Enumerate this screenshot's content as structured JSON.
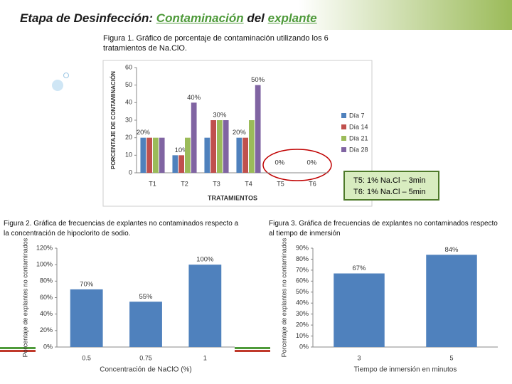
{
  "slide": {
    "title_parts": [
      "Etapa de Desinfección:",
      "Contaminación",
      "del",
      "explante"
    ],
    "annotation": [
      "T5: 1% Na.Cl – 3min",
      "T6: 1% Na.Cl – 5min"
    ]
  },
  "chart_data": [
    {
      "type": "bar",
      "caption": "Figura 1. Gráfico de porcentaje de contaminación utilizando los 6 tratamientos de Na.ClO.",
      "ylabel": "PORCENTAJE DE CONTAMINACIÓN",
      "xlabel": "TRATAMIENTOS",
      "categories": [
        "T1",
        "T2",
        "T3",
        "T4",
        "T5",
        "T6"
      ],
      "series": [
        {
          "name": "Día 7",
          "color": "#4f81bd",
          "values": [
            20,
            10,
            20,
            20,
            0,
            0
          ],
          "value_labels": [
            "20%",
            null,
            null,
            "20%",
            "0%",
            "0%"
          ]
        },
        {
          "name": "Día 14",
          "color": "#c0504d",
          "values": [
            20,
            10,
            30,
            20,
            0,
            0
          ],
          "value_labels": [
            null,
            "10%",
            null,
            null,
            null,
            null
          ]
        },
        {
          "name": "Día 21",
          "color": "#9bbb59",
          "values": [
            20,
            20,
            30,
            30,
            0,
            0
          ],
          "value_labels": [
            null,
            null,
            "30%",
            null,
            null,
            null
          ]
        },
        {
          "name": "Día 28",
          "color": "#8064a2",
          "values": [
            20,
            40,
            30,
            50,
            0,
            0
          ],
          "value_labels": [
            null,
            "40%",
            null,
            "50%",
            null,
            null
          ]
        }
      ],
      "ylim": [
        0,
        60
      ],
      "yticks": [
        0,
        10,
        20,
        30,
        40,
        50,
        60
      ],
      "legend": "right"
    },
    {
      "type": "bar",
      "caption": "Figura 2. Gráfica de frecuencias de explantes no contaminados respecto a la concentración de hipoclorito de sodio.",
      "ylabel": "Porcentaje de explantes no contaminados",
      "xlabel": "Concentración de NaClO (%)",
      "categories": [
        "0.5",
        "0.75",
        "1"
      ],
      "values": [
        70,
        55,
        100
      ],
      "value_labels": [
        "70%",
        "55%",
        "100%"
      ],
      "color": "#4f81bd",
      "ylim": [
        0,
        120
      ],
      "yticks": [
        {
          "value": 0,
          "label": "0%"
        },
        {
          "value": 20,
          "label": "20%"
        },
        {
          "value": 40,
          "label": "40%"
        },
        {
          "value": 60,
          "label": "60%"
        },
        {
          "value": 80,
          "label": "80%"
        },
        {
          "value": 100,
          "label": "100%"
        },
        {
          "value": 120,
          "label": "120%"
        }
      ]
    },
    {
      "type": "bar",
      "caption": "Figura 3. Gráfica de frecuencias de explantes no contaminados respecto al tiempo de inmersión",
      "ylabel": "Porcentaje de explantes no contaminados",
      "xlabel": "Tiempo de inmersión en minutos",
      "categories": [
        "3",
        "5"
      ],
      "values": [
        67,
        84
      ],
      "value_labels": [
        "67%",
        "84%"
      ],
      "color": "#4f81bd",
      "ylim": [
        0,
        90
      ],
      "yticks": [
        {
          "value": 0,
          "label": "0%"
        },
        {
          "value": 10,
          "label": "10%"
        },
        {
          "value": 20,
          "label": "20%"
        },
        {
          "value": 30,
          "label": "30%"
        },
        {
          "value": 40,
          "label": "40%"
        },
        {
          "value": 50,
          "label": "50%"
        },
        {
          "value": 60,
          "label": "60%"
        },
        {
          "value": 70,
          "label": "70%"
        },
        {
          "value": 80,
          "label": "80%"
        },
        {
          "value": 90,
          "label": "90%"
        }
      ]
    }
  ]
}
